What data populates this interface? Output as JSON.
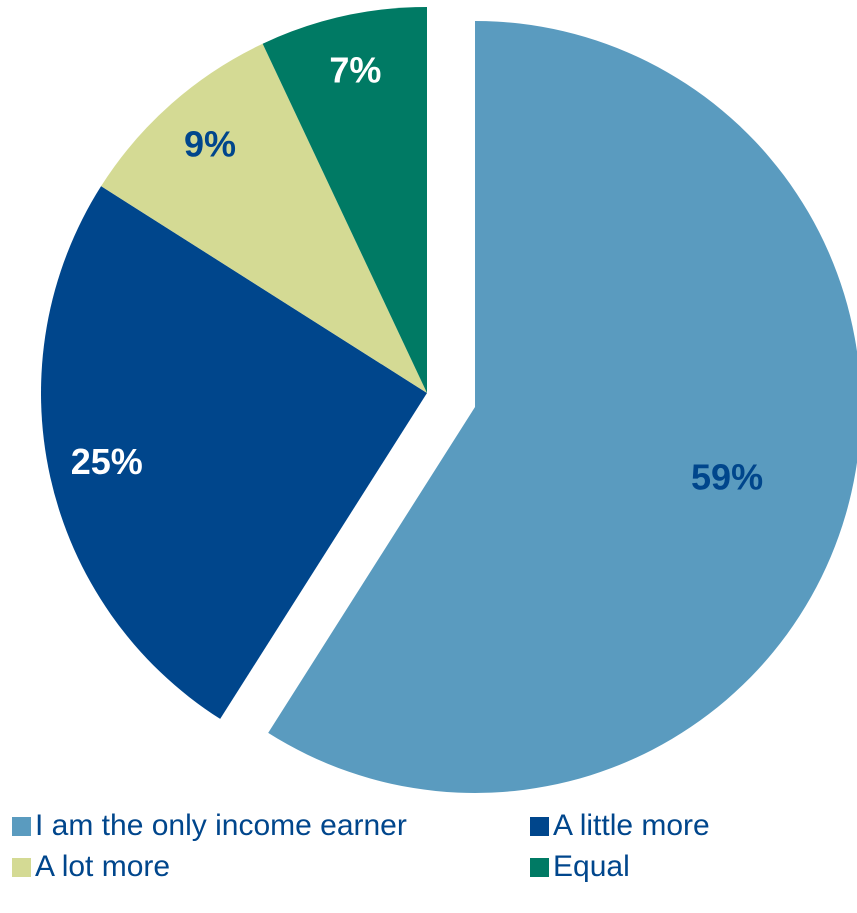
{
  "chart_data": {
    "type": "pie",
    "categories": [
      "I am the only income earner",
      "A little more",
      "A lot more",
      "Equal"
    ],
    "values": [
      59,
      25,
      9,
      7
    ],
    "value_labels": [
      "59%",
      "25%",
      "9%",
      "7%"
    ],
    "colors": [
      "#5a9bbf",
      "#00468c",
      "#d4da94",
      "#007a64"
    ],
    "label_colors": [
      "#00468c",
      "#ffffff",
      "#00468c",
      "#ffffff"
    ],
    "legend": "bottom"
  }
}
